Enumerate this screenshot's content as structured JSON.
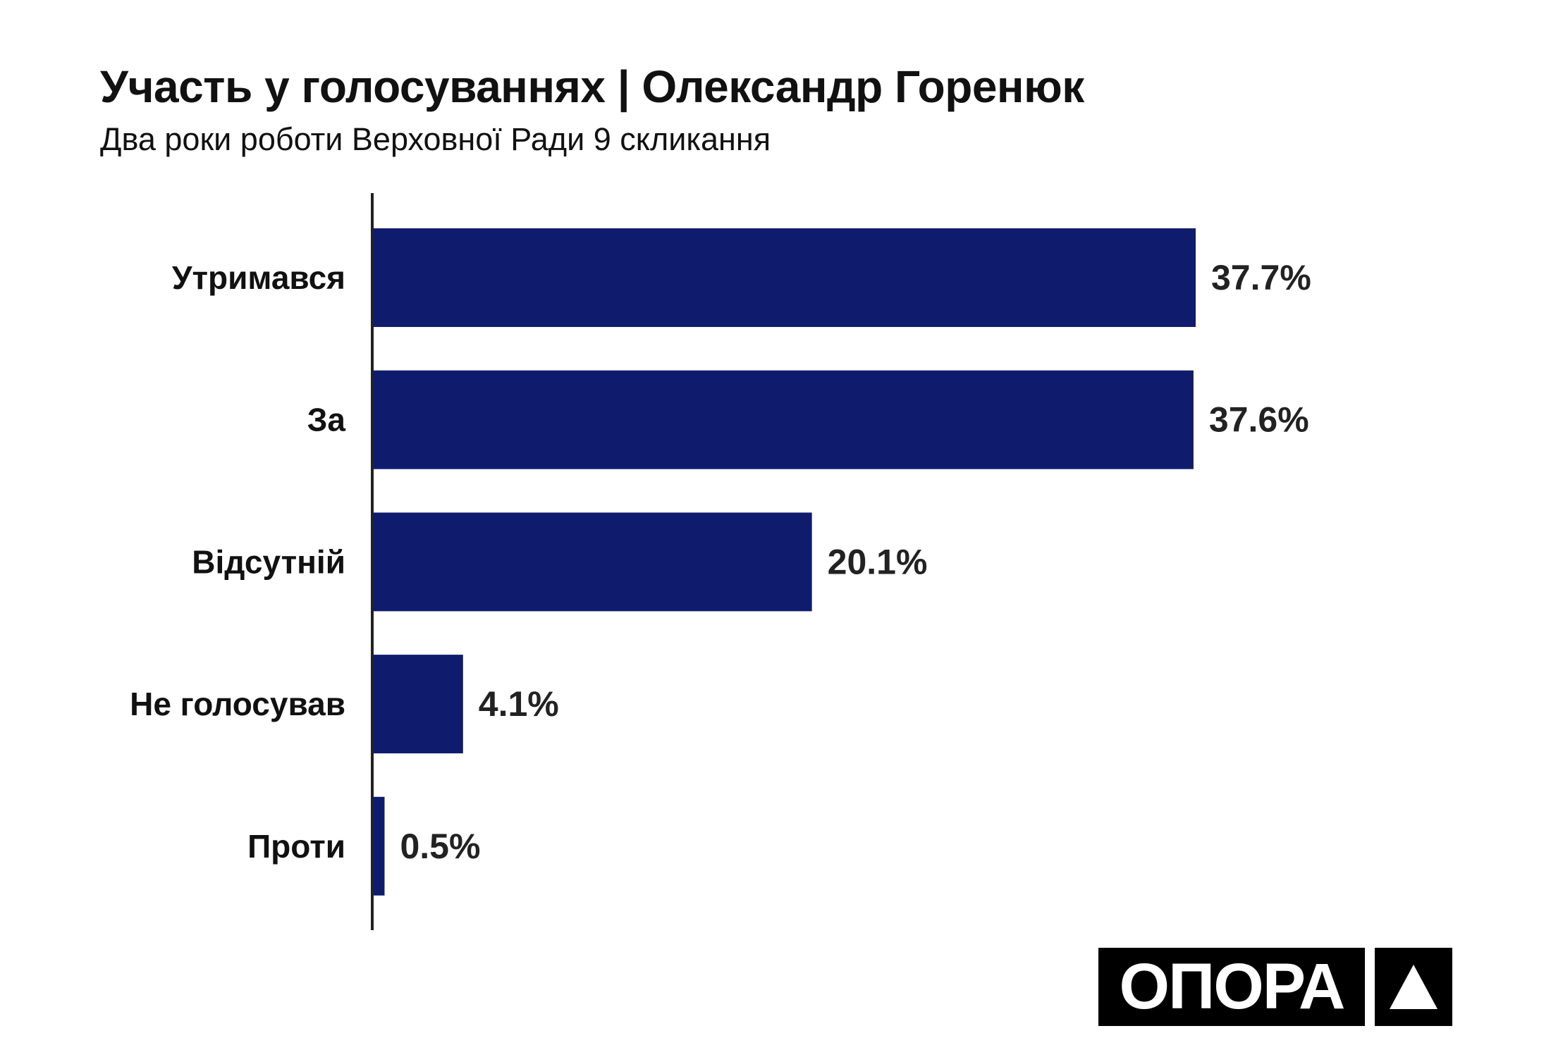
{
  "chart_data": {
    "type": "bar",
    "orientation": "horizontal",
    "title": "Участь у голосуваннях | Олександр Горенюк",
    "subtitle": "Два роки роботи Верховної Ради 9 скликання",
    "categories": [
      "Утримався",
      "За",
      "Відсутній",
      "Не голосував",
      "Проти"
    ],
    "values": [
      37.7,
      37.6,
      20.1,
      4.1,
      0.5
    ],
    "value_labels": [
      "37.7%",
      "37.6%",
      "20.1%",
      "4.1%",
      "0.5%"
    ],
    "xlabel": "",
    "ylabel": "",
    "xlim": [
      0,
      37.7
    ],
    "grid": false,
    "bar_color": "#0f1c6e"
  },
  "logo": {
    "text": "ОПОРА"
  }
}
